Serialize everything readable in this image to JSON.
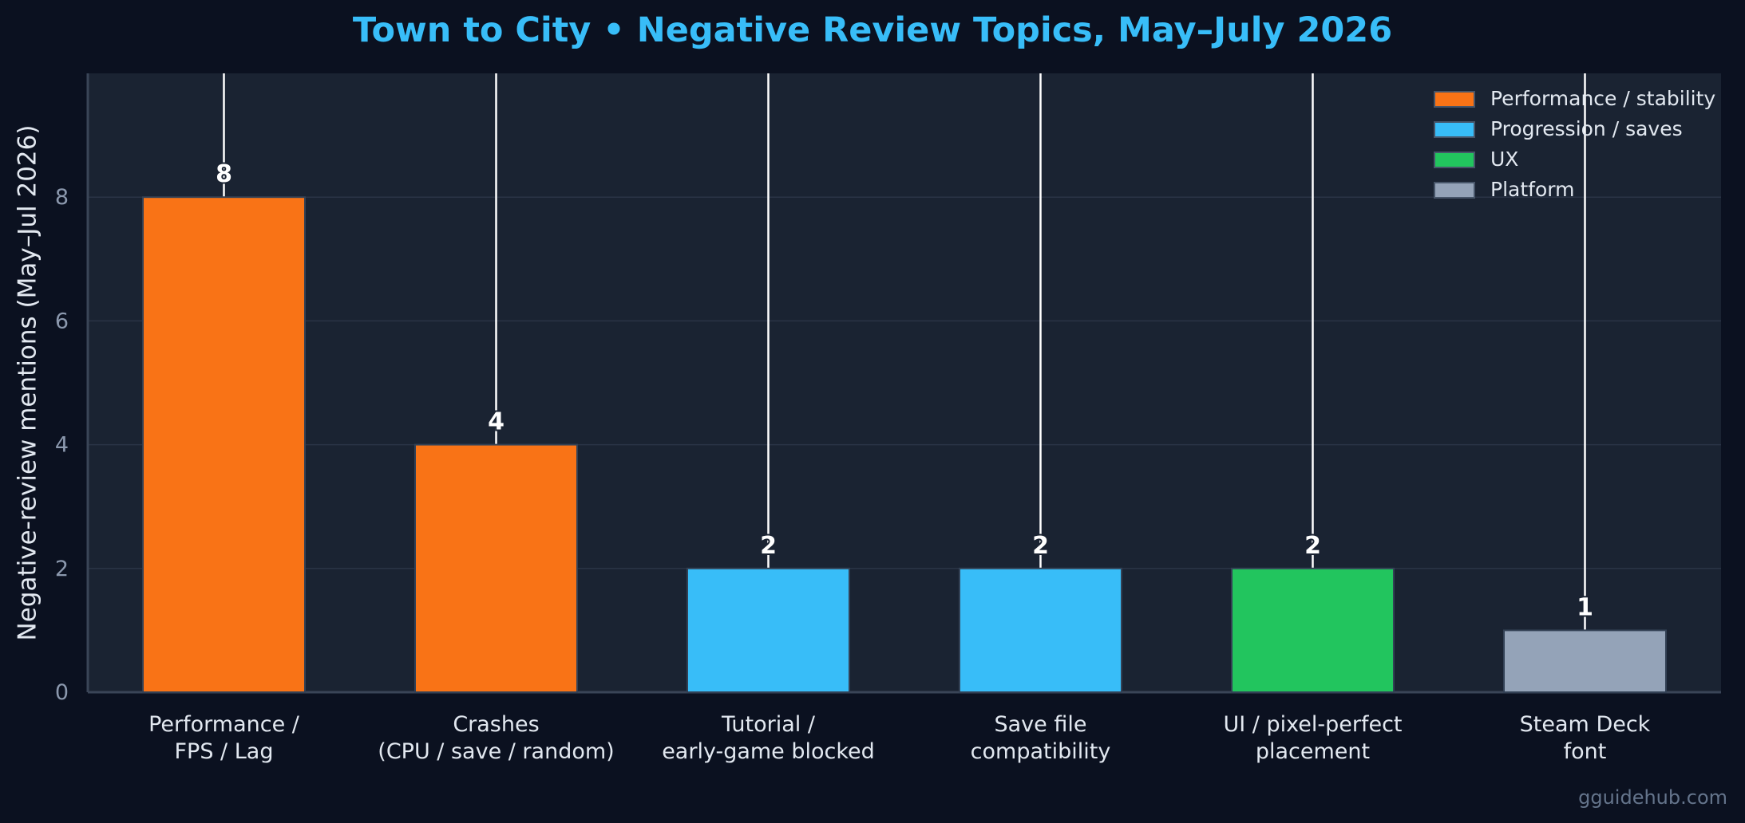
{
  "chart_data": {
    "type": "bar",
    "title": "Town to City  •  Negative Review Topics, May–July 2026",
    "xlabel": "",
    "ylabel": "Negative-review mentions (May–Jul 2026)",
    "ylim": [
      0,
      10
    ],
    "yticks": [
      0,
      2,
      4,
      6,
      8
    ],
    "grid": true,
    "legend_position": "top-right",
    "categories": [
      [
        "Performance /",
        "FPS / Lag"
      ],
      [
        "Crashes",
        "(CPU / save / random)"
      ],
      [
        "Tutorial /",
        "early-game blocked"
      ],
      [
        "Save file",
        "compatibility"
      ],
      [
        "UI / pixel-perfect",
        "placement"
      ],
      [
        "Steam Deck",
        "font"
      ]
    ],
    "values": [
      8,
      4,
      2,
      2,
      2,
      1
    ],
    "bar_groups": [
      "Performance / stability",
      "Performance / stability",
      "Progression / saves",
      "Progression / saves",
      "UX",
      "Platform"
    ],
    "legend": [
      {
        "name": "Performance / stability",
        "color": "#f97316"
      },
      {
        "name": "Progression / saves",
        "color": "#38bdf8"
      },
      {
        "name": "UX",
        "color": "#22c55e"
      },
      {
        "name": "Platform",
        "color": "#94a3b8"
      }
    ]
  },
  "watermark": "gguidehub.com"
}
